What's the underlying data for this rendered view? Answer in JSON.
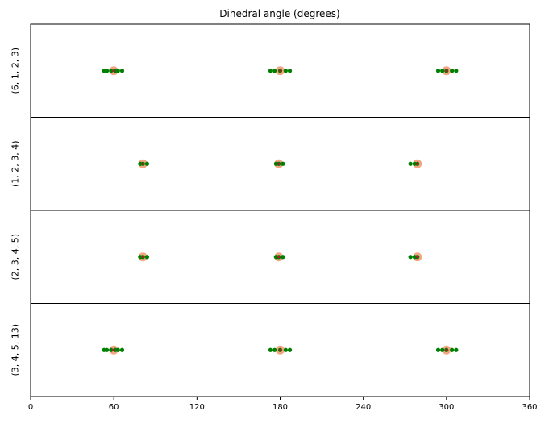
{
  "chart_data": {
    "type": "scatter",
    "title": "Dihedral angle (degrees)",
    "xlim": [
      0,
      360
    ],
    "x_ticks": [
      0,
      60,
      120,
      180,
      240,
      300,
      360
    ],
    "grid": false,
    "colors": {
      "points": "#008000",
      "highlight": "#f4a582",
      "center": "#b2182b"
    },
    "panels": [
      {
        "label": "(6, 1, 2, 3)",
        "points": [
          53,
          55,
          58,
          61,
          63,
          66,
          173,
          176,
          180,
          184,
          187,
          294,
          297,
          300,
          304,
          307
        ],
        "highlights": [
          60,
          180,
          300
        ]
      },
      {
        "label": "(1, 2, 3, 4)",
        "points": [
          79,
          81,
          84,
          177,
          179,
          182,
          274,
          277,
          279
        ],
        "highlights": [
          81,
          179,
          279
        ]
      },
      {
        "label": "(2, 3, 4, 5)",
        "points": [
          79,
          81,
          84,
          177,
          179,
          182,
          274,
          277,
          279
        ],
        "highlights": [
          81,
          179,
          279
        ]
      },
      {
        "label": "(3, 4, 5, 13)",
        "points": [
          53,
          55,
          58,
          61,
          63,
          66,
          173,
          176,
          180,
          184,
          187,
          294,
          297,
          300,
          304,
          307
        ],
        "highlights": [
          60,
          180,
          300
        ]
      }
    ]
  }
}
